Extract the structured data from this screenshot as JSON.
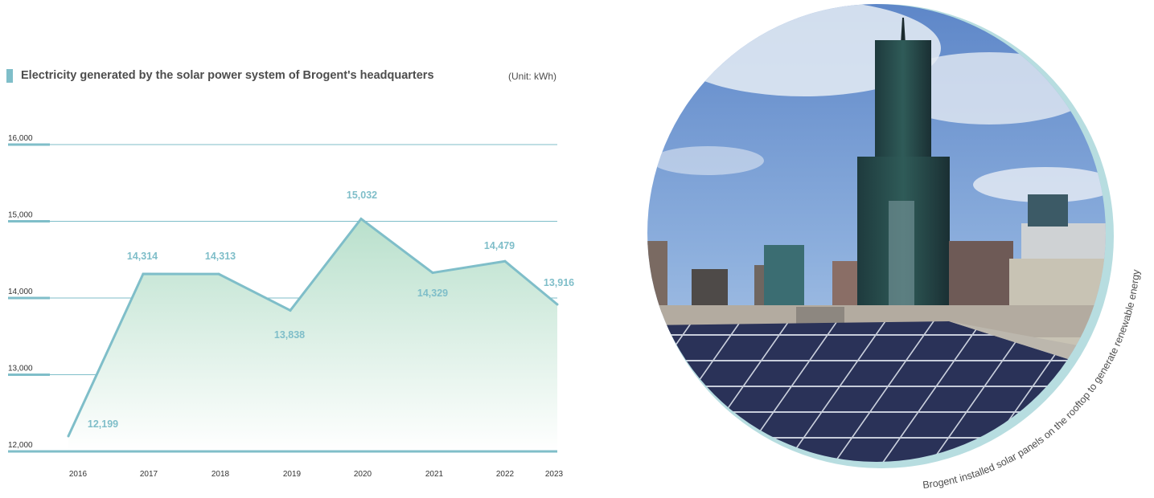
{
  "chart": {
    "title": "Electricity generated by the solar power system of Brogent's headquarters",
    "unit_label": "(Unit: kWh)"
  },
  "chart_data": {
    "type": "area",
    "title": "Electricity generated by the solar power system of Brogent's headquarters",
    "unit": "(Unit: kWh)",
    "x": [
      "2016",
      "2017",
      "2018",
      "2019",
      "2020",
      "2021",
      "2022",
      "2023"
    ],
    "series": [
      {
        "values": [
          12199,
          14314,
          14313,
          13838,
          15032,
          14329,
          14479,
          13916
        ]
      }
    ],
    "data_labels": [
      "12,199",
      "14,314",
      "14,313",
      "13,838",
      "15,032",
      "14,329",
      "14,479",
      "13,916"
    ],
    "ylim": [
      12000,
      16000
    ],
    "yticks": [
      12000,
      13000,
      14000,
      15000,
      16000
    ],
    "ytick_labels": [
      "12,000",
      "13,000",
      "14,000",
      "15,000",
      "16,000"
    ],
    "grid": true,
    "colors": {
      "line": "#7fbec9",
      "fill_top": "#b9e0cc",
      "fill_bottom": "#ffffff",
      "grid": "#7fbec9"
    }
  },
  "photo": {
    "caption": "Brogent installed solar panels on the rooftop to generate renewable energy"
  }
}
